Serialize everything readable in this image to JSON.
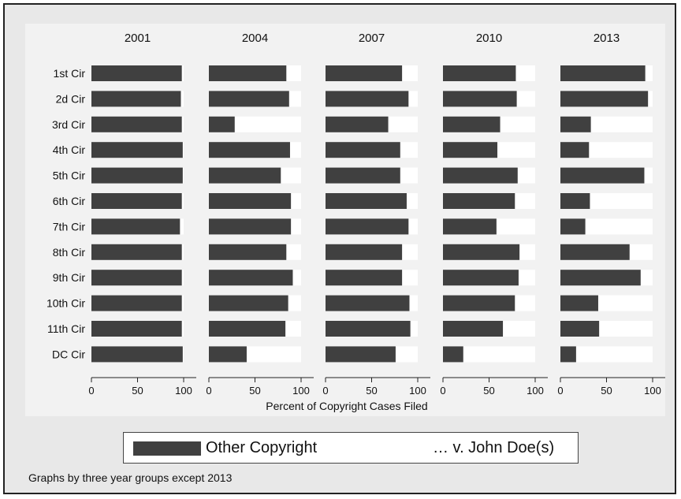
{
  "chart_data": {
    "type": "bar",
    "orientation": "horizontal",
    "stacked": true,
    "panels": [
      {
        "title": "2001",
        "other": [
          98,
          97,
          98,
          99,
          99,
          98,
          96,
          98,
          98,
          98,
          98,
          99
        ]
      },
      {
        "title": "2004",
        "other": [
          84,
          87,
          28,
          88,
          78,
          89,
          89,
          84,
          91,
          86,
          83,
          41
        ]
      },
      {
        "title": "2007",
        "other": [
          83,
          90,
          68,
          81,
          81,
          88,
          90,
          83,
          83,
          91,
          92,
          76
        ]
      },
      {
        "title": "2010",
        "other": [
          79,
          80,
          62,
          59,
          81,
          78,
          58,
          83,
          82,
          78,
          65,
          22
        ]
      },
      {
        "title": "2013",
        "other": [
          92,
          95,
          33,
          31,
          91,
          32,
          27,
          75,
          87,
          41,
          42,
          17
        ]
      }
    ],
    "categories": [
      "1st Cir",
      "2d Cir",
      "3rd Cir",
      "4th Cir",
      "5th Cir",
      "6th Cir",
      "7th Cir",
      "8th Cir",
      "9th Cir",
      "10th Cir",
      "11th Cir",
      "DC Cir"
    ],
    "series": [
      {
        "name": "Other Copyright",
        "color": "#404040"
      },
      {
        "name": "… v. John Doe(s)",
        "color": "#ffffff"
      }
    ],
    "xlabel": "Percent of Copyright Cases Filed",
    "xlim": [
      0,
      100
    ],
    "xticks": [
      0,
      50,
      100
    ],
    "legend_position": "bottom",
    "note": "Graphs by three year groups except 2013"
  }
}
